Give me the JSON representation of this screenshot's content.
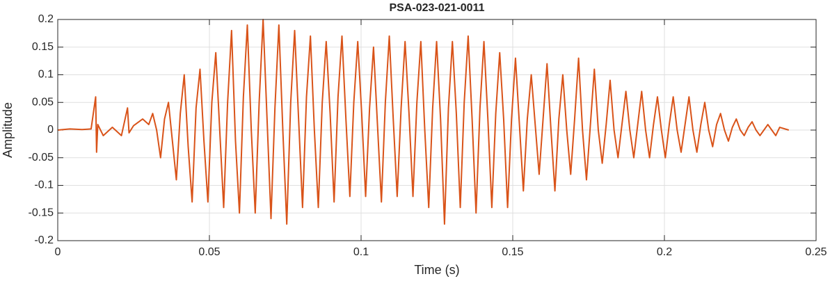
{
  "chart_data": {
    "type": "line",
    "title": "PSA-023-021-0011",
    "xlabel": "Time (s)",
    "ylabel": "Amplitude",
    "xlim": [
      0,
      0.25
    ],
    "xticks": [
      0,
      0.05,
      0.1,
      0.15,
      0.2,
      0.25
    ],
    "ylim": [
      -0.2,
      0.2
    ],
    "yticks": [
      -0.2,
      -0.15,
      -0.1,
      -0.05,
      0,
      0.05,
      0.1,
      0.15,
      0.2
    ],
    "grid": true,
    "x": [
      0,
      0.004,
      0.008,
      0.011,
      0.0125,
      0.0128,
      0.0132,
      0.015,
      0.018,
      0.021,
      0.023,
      0.0235,
      0.025,
      0.028,
      0.03,
      0.0313,
      0.0326,
      0.0339,
      0.0352,
      0.0365,
      0.0378,
      0.0391,
      0.0404,
      0.0417,
      0.043,
      0.0443,
      0.0456,
      0.0469,
      0.0482,
      0.0495,
      0.0508,
      0.0521,
      0.0534,
      0.0547,
      0.056,
      0.0573,
      0.0586,
      0.0599,
      0.0612,
      0.0625,
      0.0638,
      0.0651,
      0.0664,
      0.0677,
      0.069,
      0.0703,
      0.0716,
      0.0729,
      0.0742,
      0.0755,
      0.0768,
      0.0781,
      0.0794,
      0.0807,
      0.082,
      0.0833,
      0.0846,
      0.0859,
      0.0872,
      0.0885,
      0.0898,
      0.0911,
      0.0924,
      0.0937,
      0.095,
      0.0963,
      0.0976,
      0.0989,
      0.1002,
      0.1015,
      0.1028,
      0.1041,
      0.1054,
      0.1067,
      0.108,
      0.1093,
      0.1106,
      0.1119,
      0.1132,
      0.1145,
      0.1158,
      0.1171,
      0.1184,
      0.1197,
      0.121,
      0.1223,
      0.1236,
      0.1249,
      0.1262,
      0.1275,
      0.1288,
      0.1301,
      0.1314,
      0.1327,
      0.134,
      0.1353,
      0.1366,
      0.1379,
      0.1392,
      0.1405,
      0.1418,
      0.1431,
      0.1444,
      0.1457,
      0.147,
      0.1483,
      0.1496,
      0.1509,
      0.1522,
      0.1535,
      0.1548,
      0.1561,
      0.1574,
      0.1587,
      0.16,
      0.1613,
      0.1626,
      0.1639,
      0.1652,
      0.1665,
      0.1678,
      0.1691,
      0.1704,
      0.1717,
      0.173,
      0.1743,
      0.1756,
      0.1769,
      0.1782,
      0.1795,
      0.1808,
      0.1821,
      0.1834,
      0.1847,
      0.186,
      0.1873,
      0.1886,
      0.1899,
      0.1912,
      0.1925,
      0.1938,
      0.1951,
      0.1964,
      0.1977,
      0.199,
      0.2003,
      0.2016,
      0.2029,
      0.2042,
      0.2055,
      0.2068,
      0.2081,
      0.2094,
      0.2107,
      0.212,
      0.2133,
      0.2146,
      0.2159,
      0.2172,
      0.2185,
      0.2198,
      0.2211,
      0.2224,
      0.2237,
      0.225,
      0.2263,
      0.2276,
      0.2289,
      0.2302,
      0.2315,
      0.2328,
      0.2341,
      0.2354,
      0.2367,
      0.238,
      0.241
    ],
    "series": [
      {
        "name": "Amplitude",
        "color": "#d95319",
        "values": [
          0,
          0.002,
          0.001,
          0.002,
          0.06,
          -0.04,
          0.01,
          -0.01,
          0.005,
          -0.01,
          0.04,
          -0.005,
          0.008,
          0.02,
          0.01,
          0.03,
          0.0,
          -0.05,
          0.02,
          0.05,
          -0.02,
          -0.09,
          0.03,
          0.1,
          -0.03,
          -0.13,
          0.04,
          0.11,
          -0.02,
          -0.13,
          0.05,
          0.14,
          0.0,
          -0.14,
          0.05,
          0.18,
          -0.02,
          -0.15,
          0.06,
          0.19,
          0.0,
          -0.15,
          0.05,
          0.2,
          0.02,
          -0.16,
          0.04,
          0.19,
          0.0,
          -0.17,
          0.05,
          0.18,
          0.02,
          -0.14,
          0.06,
          0.17,
          0.0,
          -0.14,
          0.05,
          0.16,
          0.03,
          -0.13,
          0.06,
          0.17,
          0.02,
          -0.12,
          0.05,
          0.16,
          0.03,
          -0.12,
          0.04,
          0.15,
          0.01,
          -0.13,
          0.05,
          0.17,
          0.02,
          -0.12,
          0.04,
          0.16,
          0.03,
          -0.12,
          0.05,
          0.16,
          0.0,
          -0.14,
          0.04,
          0.16,
          0.02,
          -0.17,
          0.04,
          0.16,
          0.03,
          -0.14,
          0.05,
          0.17,
          0.02,
          -0.15,
          0.04,
          0.16,
          0.02,
          -0.14,
          0.03,
          0.14,
          0.02,
          -0.14,
          0.02,
          0.13,
          0.01,
          -0.11,
          0.02,
          0.1,
          0.01,
          -0.08,
          0.02,
          0.12,
          0.0,
          -0.11,
          0.02,
          0.1,
          0.0,
          -0.08,
          0.02,
          0.13,
          0.0,
          -0.09,
          0.01,
          0.11,
          0.0,
          -0.06,
          0.01,
          0.09,
          0.0,
          -0.05,
          0.01,
          0.07,
          0.0,
          -0.05,
          0.01,
          0.07,
          0.0,
          -0.05,
          0.01,
          0.06,
          0.0,
          -0.05,
          0.01,
          0.06,
          0.0,
          -0.04,
          0.01,
          0.06,
          0.0,
          -0.04,
          0.01,
          0.05,
          0.0,
          -0.03,
          0.01,
          0.03,
          0.0,
          -0.02,
          0.005,
          0.02,
          0.0,
          -0.01,
          0.005,
          0.015,
          0.0,
          -0.01,
          0.0,
          0.01,
          0.0,
          -0.01,
          0.005,
          0
        ]
      }
    ]
  }
}
